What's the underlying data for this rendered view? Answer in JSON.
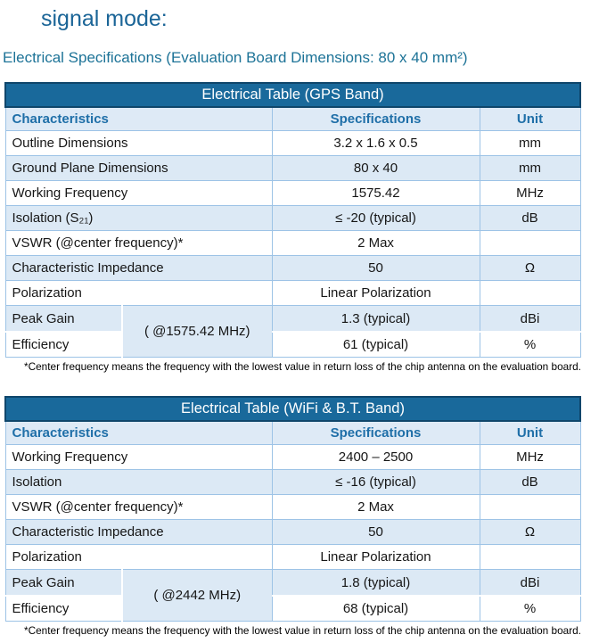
{
  "page": {
    "heading": "signal mode:",
    "subtitle": "Electrical Specifications (Evaluation Board Dimensions: 80 x 40 mm²)"
  },
  "colors": {
    "title_bar_bg": "#19699B",
    "title_bar_border": "#0F466B",
    "title_text": "#FFFFFF",
    "header_bg": "#DEEAF6",
    "header_text": "#1F6FA8",
    "row_shade": "#DCE9F5",
    "grid_line": "#9DC3E6",
    "heading_text": "#1B6597",
    "subtitle_text": "#1D7397"
  },
  "tables": [
    {
      "title": "Electrical Table (GPS Band)",
      "columns": [
        "Characteristics",
        "Specifications",
        "Unit"
      ],
      "rows": [
        {
          "characteristic": "Outline Dimensions",
          "specification": "3.2 x 1.6 x 0.5",
          "unit": "mm"
        },
        {
          "characteristic": "Ground Plane Dimensions",
          "specification": "80 x 40",
          "unit": "mm"
        },
        {
          "characteristic": "Working Frequency",
          "specification": "1575.42",
          "unit": "MHz"
        },
        {
          "characteristic": "Isolation (S₂₁)",
          "specification": "≤ -20 (typical)",
          "unit": "dB"
        },
        {
          "characteristic": "VSWR (@center frequency)*",
          "specification": "2 Max",
          "unit": ""
        },
        {
          "characteristic": "Characteristic Impedance",
          "specification": "50",
          "unit": "Ω"
        },
        {
          "characteristic": "Polarization",
          "specification": "Linear Polarization",
          "unit": ""
        }
      ],
      "gain": {
        "condition": "( @1575.42 MHz)",
        "rows": [
          {
            "characteristic": "Peak Gain",
            "specification": "1.3 (typical)",
            "unit": "dBi"
          },
          {
            "characteristic": "Efficiency",
            "specification": "61 (typical)",
            "unit": "%"
          }
        ]
      },
      "footnote": "*Center frequency means the frequency with the lowest value in return loss of the chip antenna on the evaluation board."
    },
    {
      "title": "Electrical Table (WiFi & B.T. Band)",
      "columns": [
        "Characteristics",
        "Specifications",
        "Unit"
      ],
      "rows": [
        {
          "characteristic": "Working Frequency",
          "specification": "2400 – 2500",
          "unit": "MHz"
        },
        {
          "characteristic": "Isolation",
          "specification": "≤ -16 (typical)",
          "unit": "dB"
        },
        {
          "characteristic": "VSWR (@center frequency)*",
          "specification": "2 Max",
          "unit": ""
        },
        {
          "characteristic": "Characteristic Impedance",
          "specification": "50",
          "unit": "Ω"
        },
        {
          "characteristic": "Polarization",
          "specification": "Linear Polarization",
          "unit": ""
        }
      ],
      "gain": {
        "condition": "( @2442 MHz)",
        "rows": [
          {
            "characteristic": "Peak Gain",
            "specification": "1.8 (typical)",
            "unit": "dBi"
          },
          {
            "characteristic": "Efficiency",
            "specification": "68 (typical)",
            "unit": "%"
          }
        ]
      },
      "footnote": "*Center frequency means the frequency with the lowest value in return loss of the chip antenna on the evaluation board."
    }
  ]
}
